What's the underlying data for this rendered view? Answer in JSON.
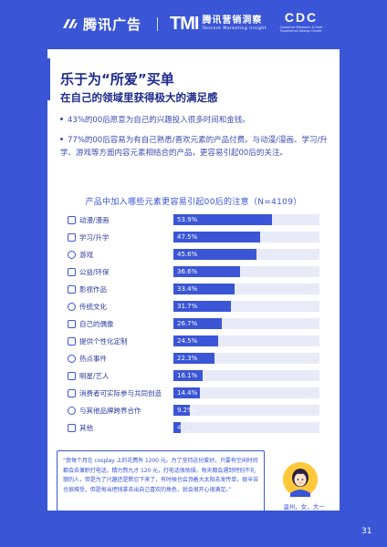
{
  "header": {
    "logo_tencent_ads": "腾讯广告",
    "logo_tmi_mark": "TMI",
    "logo_tmi_cn": "腾讯营销洞察",
    "logo_tmi_en": "Tencent Marketing Insight",
    "logo_cdc_mark": "CDC",
    "logo_cdc_sub": "Customer Research & User Experience Design Center"
  },
  "content": {
    "title": "乐于为“所爱”买单",
    "subtitle": "在自己的领域里获得极大的满足感",
    "bullets": [
      "43%的00后愿意为自己的兴趣投入很多时间和金钱。",
      "77%的00后容易为有自己熟悉/喜欢元素的产品付费。与动漫/漫画、学习/升学、游戏等方面内容元素相结合的产品，更容易引起00后的关注。"
    ]
  },
  "chart_data": {
    "type": "bar",
    "orientation": "horizontal",
    "title": "产品中加入哪些元素更容易引起00后的注意（N=4109）",
    "unit": "%",
    "xlim": [
      0,
      80
    ],
    "categories": [
      "动漫/漫画",
      "学习/升学",
      "游戏",
      "公益/环保",
      "影视作品",
      "传统文化",
      "自己的偶像",
      "提供个性化定制",
      "热点事件",
      "明星/艺人",
      "消费者可实际参与共同创造",
      "与其他品牌跨界合作",
      "其他"
    ],
    "values": [
      53.9,
      47.5,
      45.6,
      36.6,
      33.4,
      31.7,
      26.7,
      24.5,
      22.3,
      16.1,
      14.4,
      9.2,
      4.2
    ],
    "value_labels": [
      "53.9%",
      "47.5%",
      "45.6%",
      "36.6%",
      "33.4%",
      "31.7%",
      "26.7%",
      "24.5%",
      "22.3%",
      "16.1%",
      "14.4%",
      "9.2%",
      "4.2%"
    ],
    "icons": [
      "anime-icon",
      "study-icon",
      "game-icon",
      "charity-icon",
      "film-icon",
      "culture-icon",
      "idol-icon",
      "customize-icon",
      "hot-event-icon",
      "celebrity-icon",
      "co-create-icon",
      "crossover-icon",
      "other-icon"
    ],
    "bar_color": "#3a55d6",
    "track_color": "#e8ebf7"
  },
  "quote": {
    "text": "“我每个月在 cosplay 上的花费有 1200 元。为了坚持这份爱好，只要有空闲时间都会去兼职打电话，精力熬九才 120 元，打电话很枯燥，每天都会遇到特别不礼貌的人，但是为了兴趣还是默忍下来了，有时候也会顶着大太阳去发传单，很辛苦也很难受，但是每当把钱拿去出自己喜欢的角色，就会很开心很满足。”",
    "caption": "温州，女，大一"
  },
  "page_number": "31",
  "colors": {
    "background": "#3a55d6",
    "card": "#ffffff",
    "title": "#1d2a8a",
    "accent": "#3a55d6"
  }
}
